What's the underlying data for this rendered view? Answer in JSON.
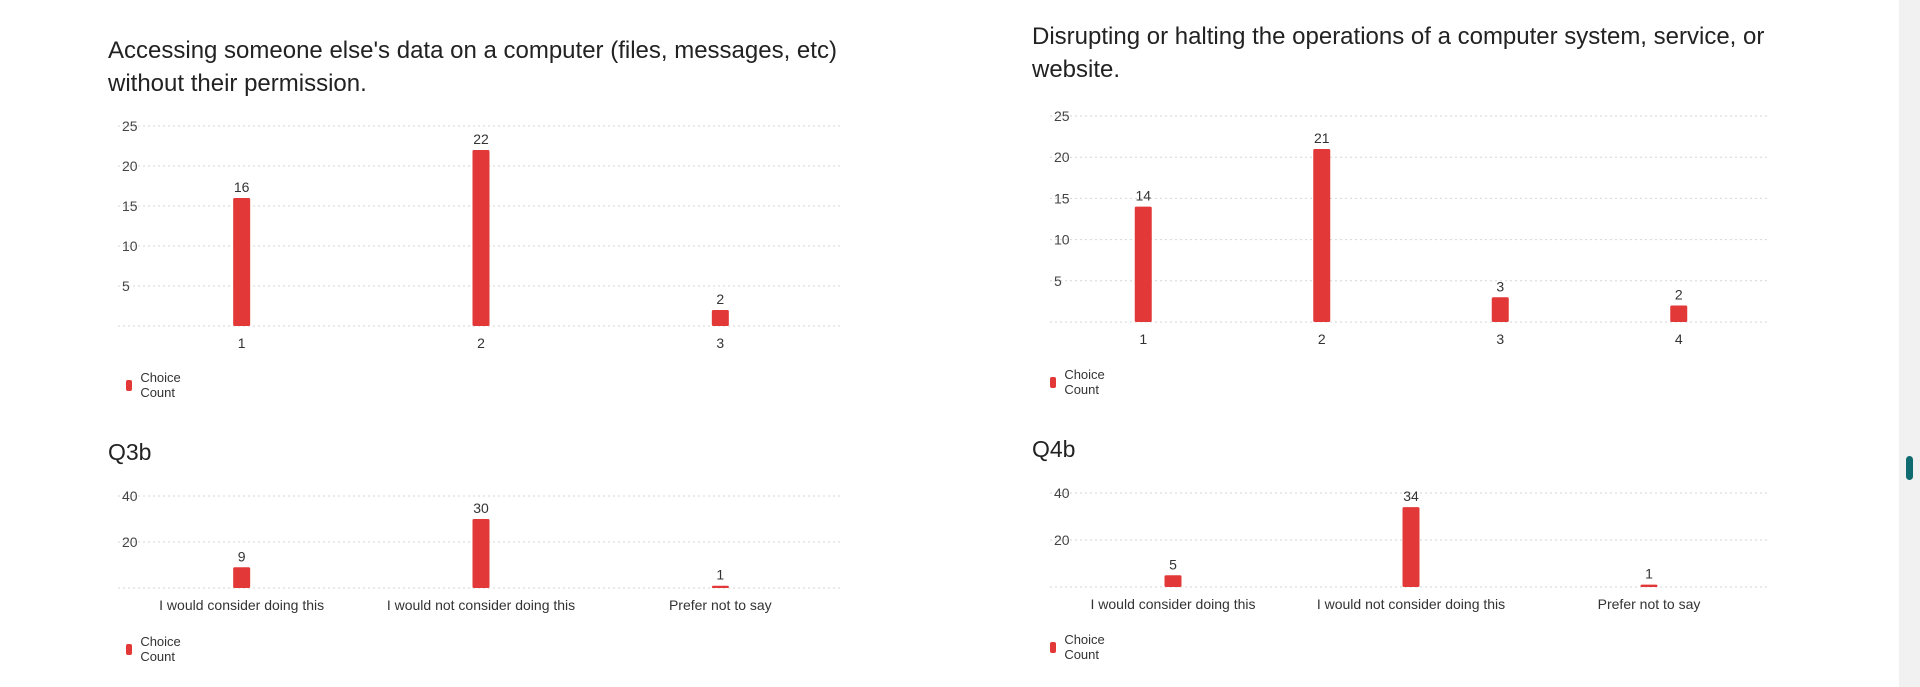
{
  "accent_color": "#e33838",
  "charts": [
    {
      "title": "Accessing someone else's data on a computer (files, messages, etc) without their permission.",
      "legend": "Choice Count",
      "chart_data": {
        "type": "bar",
        "categories": [
          "1",
          "2",
          "3"
        ],
        "series": [
          {
            "name": "Choice Count",
            "values": [
              16,
              22,
              2
            ]
          }
        ],
        "yticks": [
          "5",
          "10",
          "15",
          "20",
          "25"
        ],
        "ylim": [
          0,
          25
        ]
      }
    },
    {
      "title": "Disrupting or halting the operations of a computer system, service, or website.",
      "legend": "Choice Count",
      "chart_data": {
        "type": "bar",
        "categories": [
          "1",
          "2",
          "3",
          "4"
        ],
        "series": [
          {
            "name": "Choice Count",
            "values": [
              14,
              21,
              3,
              2
            ]
          }
        ],
        "yticks": [
          "5",
          "10",
          "15",
          "20",
          "25"
        ],
        "ylim": [
          0,
          25
        ]
      }
    },
    {
      "title": "Q3b",
      "legend": "Choice Count",
      "chart_data": {
        "type": "bar",
        "categories": [
          "I would consider doing this",
          "I would not consider doing this",
          "Prefer not to say"
        ],
        "series": [
          {
            "name": "Choice Count",
            "values": [
              9,
              30,
              1
            ]
          }
        ],
        "yticks": [
          "20",
          "40"
        ],
        "ylim": [
          0,
          40
        ]
      }
    },
    {
      "title": "Q4b",
      "legend": "Choice Count",
      "chart_data": {
        "type": "bar",
        "categories": [
          "I would consider doing this",
          "I would not consider doing this",
          "Prefer not to say"
        ],
        "series": [
          {
            "name": "Choice Count",
            "values": [
              5,
              34,
              1
            ]
          }
        ],
        "yticks": [
          "20",
          "40"
        ],
        "ylim": [
          0,
          40
        ]
      }
    }
  ]
}
